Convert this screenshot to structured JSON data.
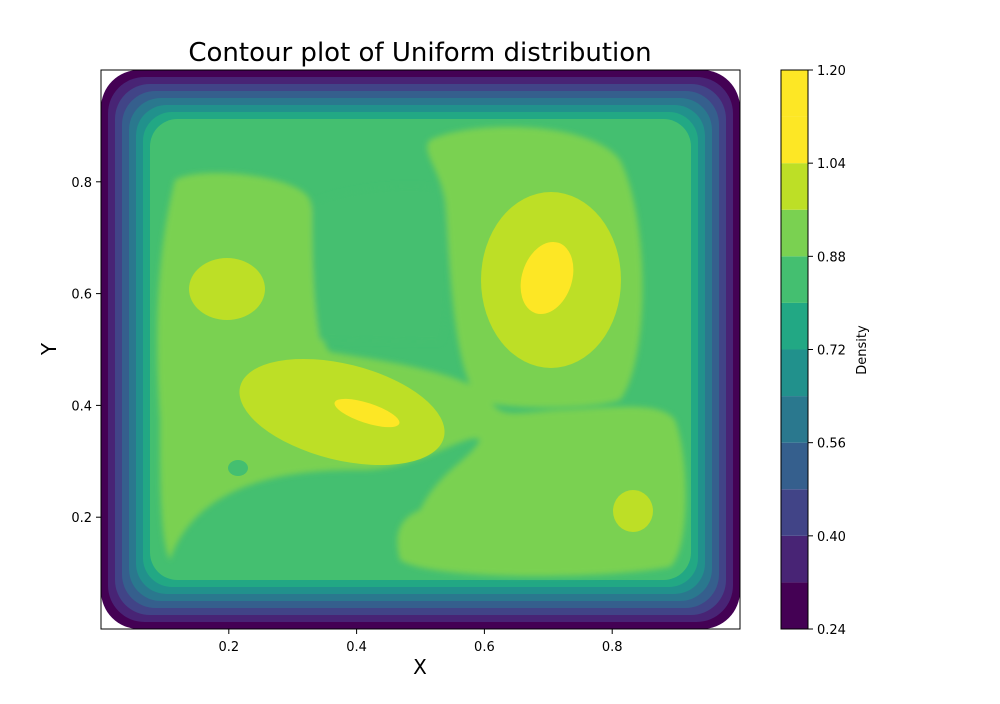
{
  "chart_data": {
    "type": "contour",
    "title": "Contour plot of Uniform distribution",
    "xlabel": "X",
    "ylabel": "Y",
    "xlim": [
      0.0,
      1.0
    ],
    "ylim": [
      0.0,
      1.0
    ],
    "x_ticks": [
      0.2,
      0.4,
      0.6,
      0.8
    ],
    "x_tick_labels": [
      "0.2",
      "0.4",
      "0.6",
      "0.8"
    ],
    "y_ticks": [
      0.2,
      0.4,
      0.6,
      0.8
    ],
    "y_tick_labels": [
      "0.2",
      "0.4",
      "0.6",
      "0.8"
    ],
    "colorbar": {
      "label": "Density",
      "range": [
        0.24,
        1.2
      ],
      "ticks": [
        0.24,
        0.4,
        0.56,
        0.72,
        0.88,
        1.04,
        1.2
      ],
      "tick_labels": [
        "0.24",
        "0.40",
        "0.56",
        "0.72",
        "0.88",
        "1.04",
        "1.20"
      ],
      "levels": [
        0.24,
        0.32,
        0.4,
        0.48,
        0.56,
        0.64,
        0.72,
        0.8,
        0.88,
        0.96,
        1.04,
        1.12,
        1.2
      ],
      "colormap": "viridis",
      "colors": [
        "#440154",
        "#482475",
        "#414487",
        "#355f8d",
        "#2a788e",
        "#21918c",
        "#22a884",
        "#44bf70",
        "#7ad151",
        "#bddf26",
        "#fde725",
        "#fde725"
      ]
    },
    "density_peaks": [
      {
        "x": 0.7,
        "y": 0.63,
        "value": 1.15
      },
      {
        "x": 0.42,
        "y": 0.38,
        "value": 1.14
      },
      {
        "x": 0.19,
        "y": 0.61,
        "value": 1.07
      },
      {
        "x": 0.84,
        "y": 0.21,
        "value": 1.07
      }
    ],
    "grid": false
  }
}
